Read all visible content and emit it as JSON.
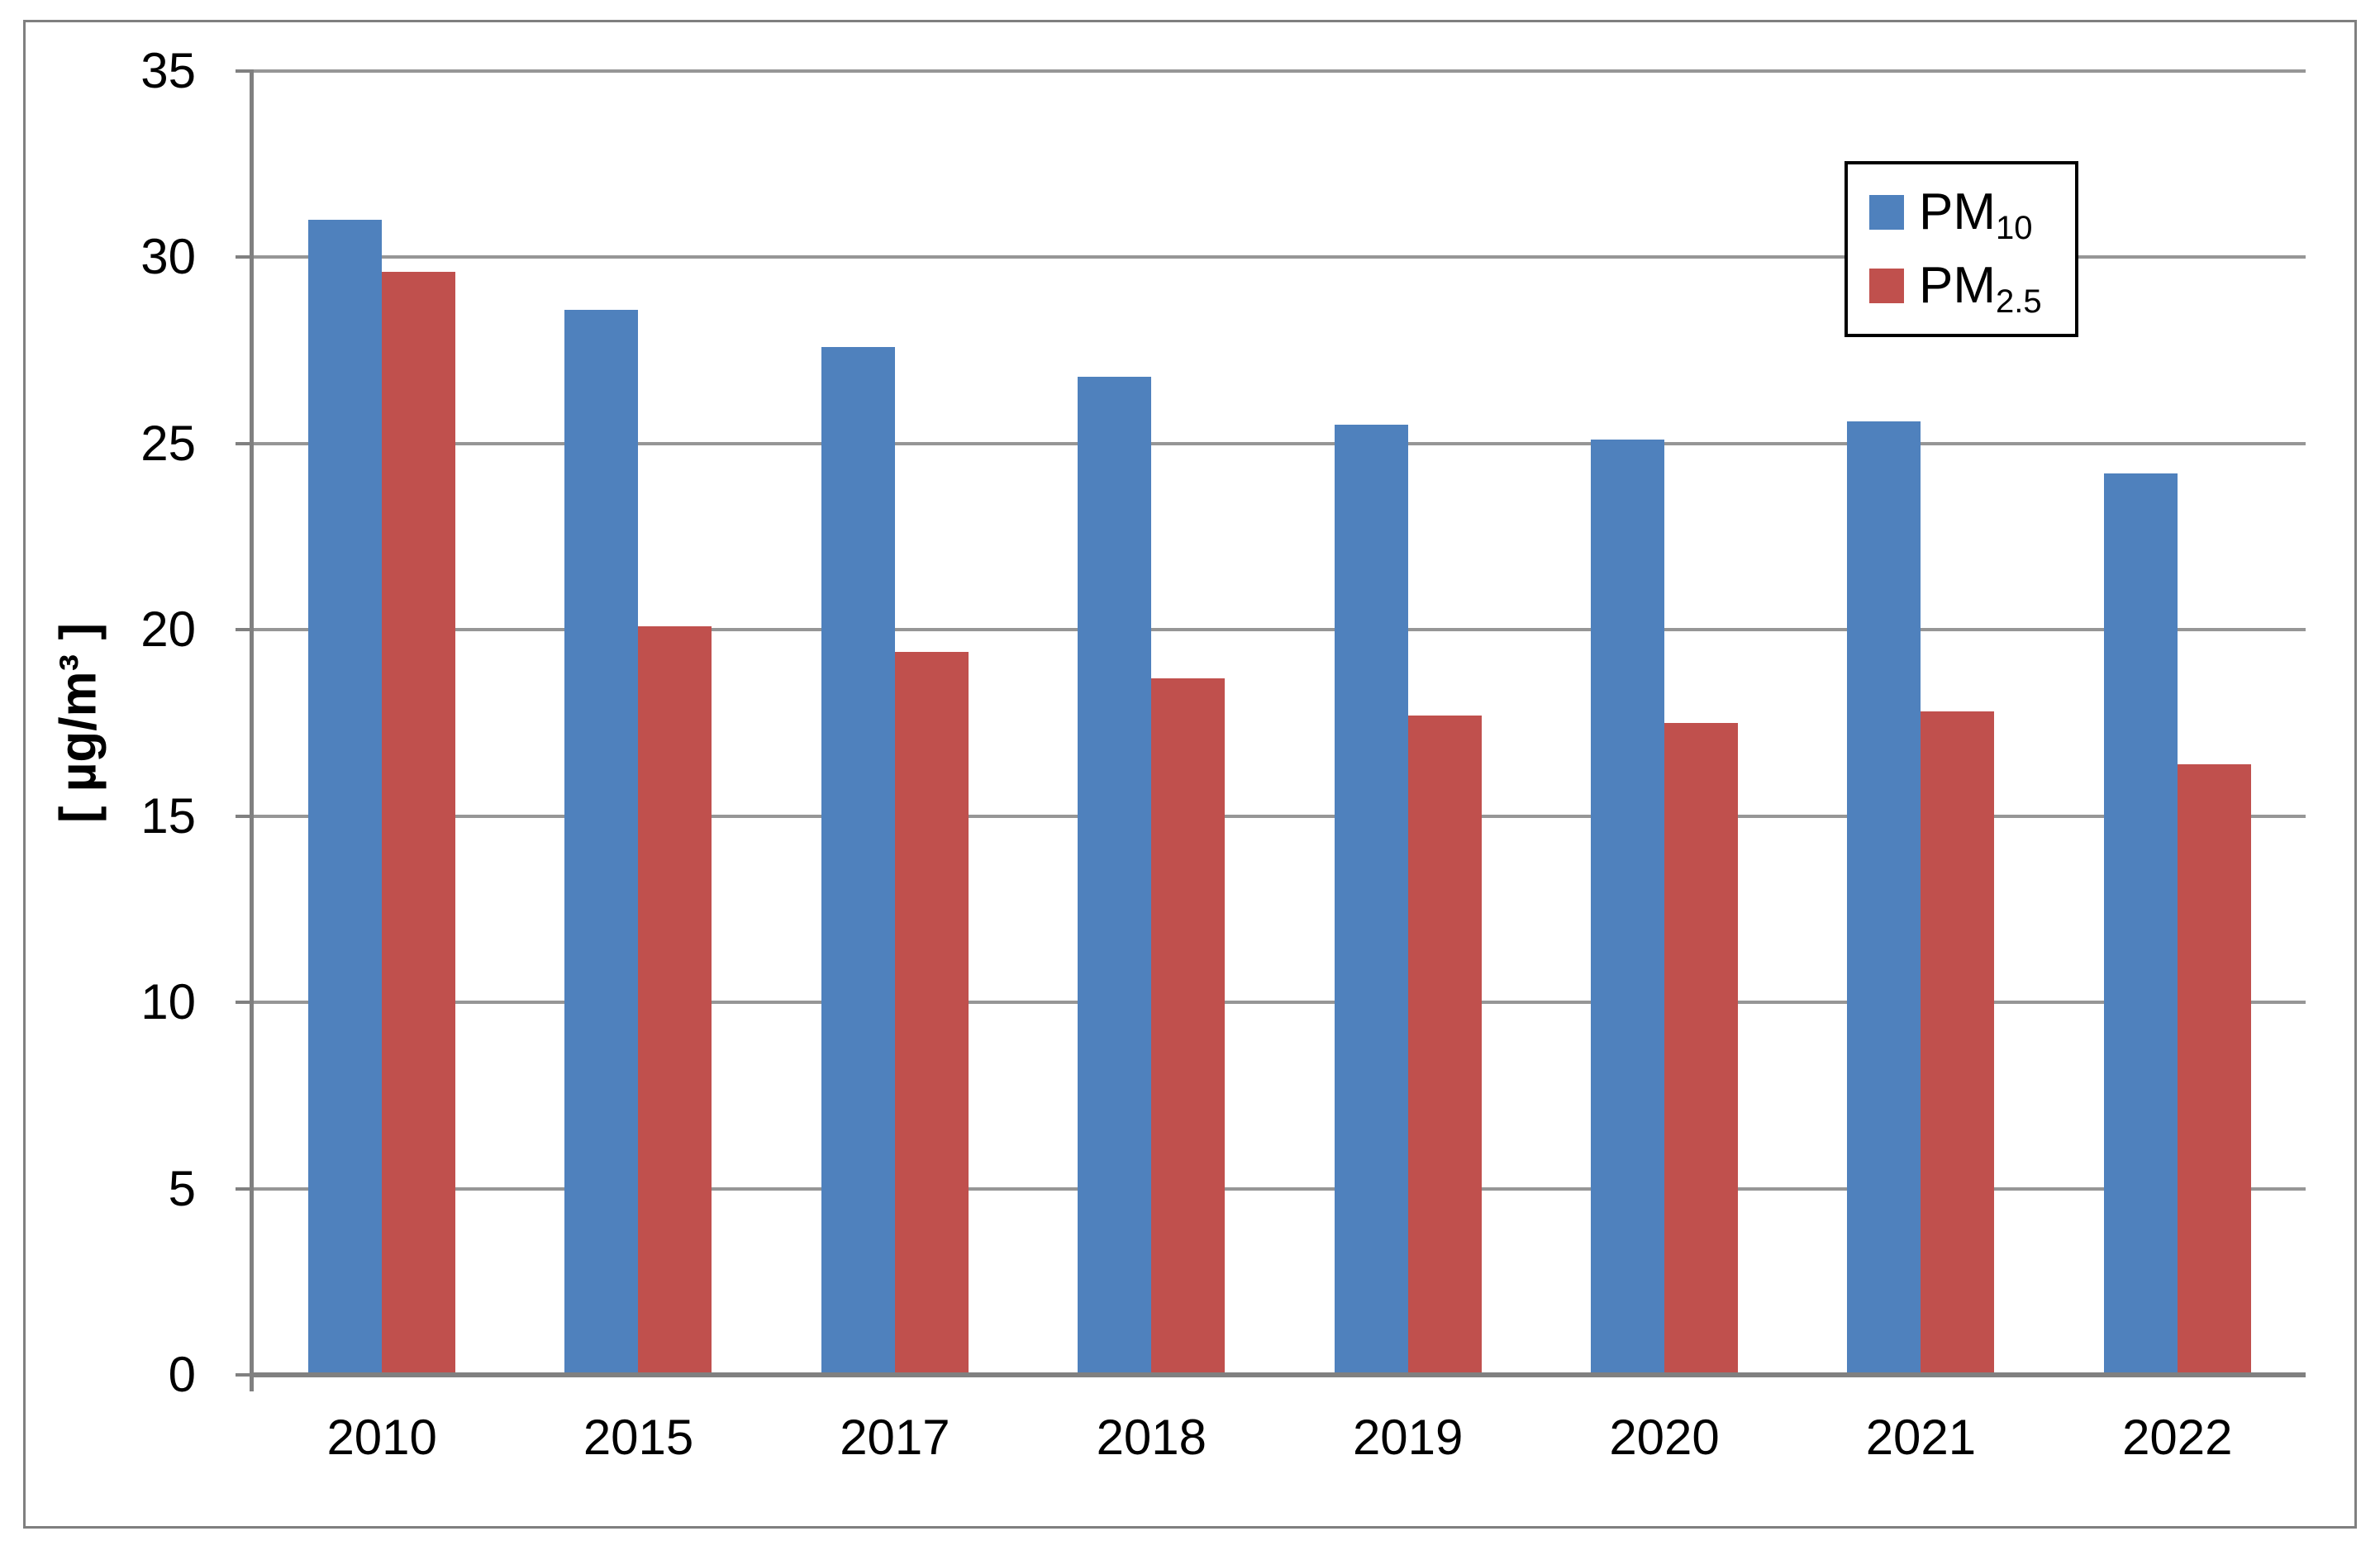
{
  "chart_data": {
    "type": "bar",
    "title": "",
    "ylabel": "[ µg/m³ ]",
    "xlabel": "",
    "ylim": [
      0,
      35
    ],
    "yticks": [
      0,
      5,
      10,
      15,
      20,
      25,
      30,
      35
    ],
    "grid": true,
    "legend_position": "top-right",
    "categories": [
      "2010",
      "2015",
      "2017",
      "2018",
      "2019",
      "2020",
      "2021",
      "2022"
    ],
    "series": [
      {
        "name": "PM10",
        "label_base": "PM",
        "label_sub": "10",
        "color": "#4F81BD",
        "values": [
          31.0,
          28.6,
          27.6,
          26.8,
          25.5,
          25.1,
          25.6,
          24.2
        ]
      },
      {
        "name": "PM2.5",
        "label_base": "PM",
        "label_sub": "2.5",
        "color": "#C0504D",
        "values": [
          29.6,
          20.1,
          19.4,
          18.7,
          17.7,
          17.5,
          17.8,
          16.4
        ]
      }
    ]
  }
}
